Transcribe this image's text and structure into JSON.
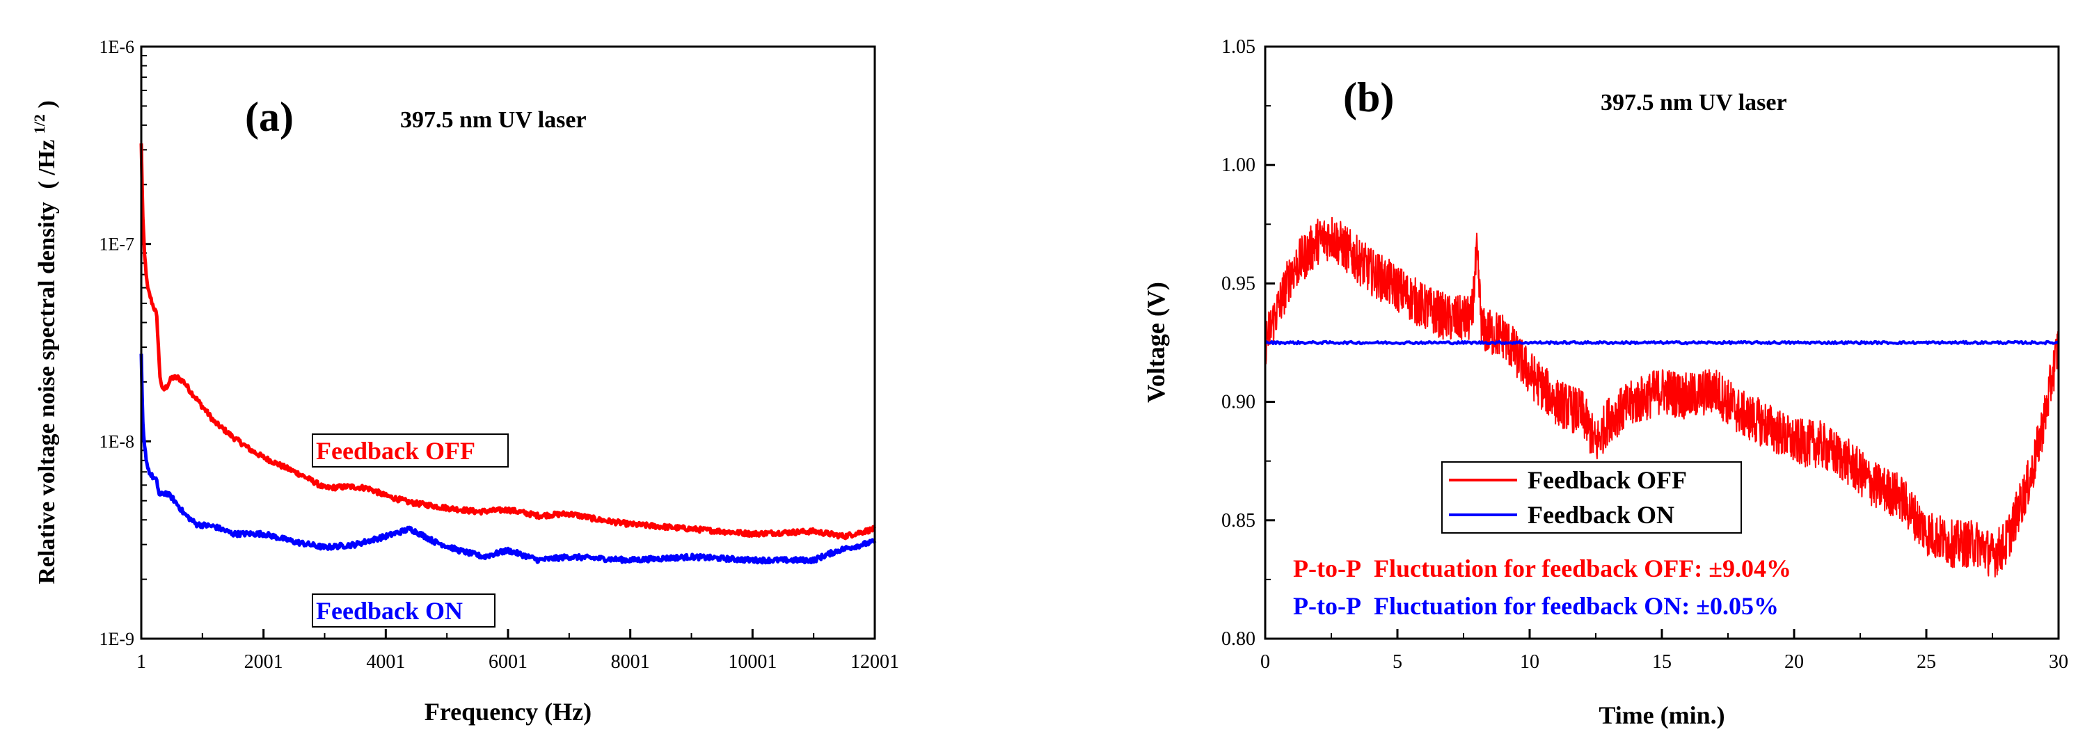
{
  "colors": {
    "off": "#ff0000",
    "on": "#0000ff",
    "axis": "#000000"
  },
  "chart_data": [
    {
      "type": "line",
      "panel_label": "(a)",
      "title": "397.5 nm UV laser",
      "xlabel": "Frequency  (Hz)",
      "ylabel": "Relative voltage noise spectral density",
      "ylabel_unit": "( /Hz",
      "ylabel_unit_sup": "1/2",
      "ylabel_unit_close": ")",
      "xlim": [
        1,
        12001
      ],
      "ylim": [
        1e-09,
        1e-06
      ],
      "yscale": "log",
      "xticks": [
        1,
        2001,
        4001,
        6001,
        8001,
        10001,
        12001
      ],
      "xtick_labels": [
        "1",
        "2001",
        "4001",
        "6001",
        "8001",
        "10001",
        "12001"
      ],
      "yticks": [
        1e-09,
        1e-08,
        1e-07,
        1e-06
      ],
      "ytick_labels": [
        "1E-9",
        "1E-8",
        "1E-7",
        "1E-6"
      ],
      "annotations": {
        "off": "Feedback OFF",
        "on": "Feedback ON"
      },
      "series": [
        {
          "name": "Feedback OFF",
          "color": "#ff0000",
          "x": [
            1,
            20,
            50,
            100,
            180,
            250,
            300,
            350,
            420,
            500,
            600,
            700,
            800,
            1000,
            1200,
            1500,
            1800,
            2000,
            2300,
            2600,
            3000,
            3400,
            3700,
            4000,
            4400,
            5000,
            5500,
            6000,
            6500,
            7000,
            7500,
            8000,
            9000,
            10000,
            11000,
            11500,
            12001
          ],
          "y": [
            3.2e-07,
            1.5e-07,
            9e-08,
            6e-08,
            5e-08,
            4.4e-08,
            2.2e-08,
            1.8e-08,
            1.9e-08,
            2.1e-08,
            2.1e-08,
            2e-08,
            1.8e-08,
            1.5e-08,
            1.25e-08,
            1.05e-08,
            9e-09,
            8.3e-09,
            7.5e-09,
            6.8e-09,
            5.8e-09,
            5.9e-09,
            5.8e-09,
            5.3e-09,
            4.9e-09,
            4.6e-09,
            4.4e-09,
            4.5e-09,
            4.2e-09,
            4.3e-09,
            4e-09,
            3.8e-09,
            3.6e-09,
            3.4e-09,
            3.5e-09,
            3.3e-09,
            3.6e-09
          ]
        },
        {
          "name": "Feedback ON",
          "color": "#0000ff",
          "x": [
            1,
            20,
            50,
            100,
            150,
            250,
            300,
            400,
            500,
            700,
            900,
            1200,
            1500,
            2000,
            2500,
            3000,
            3500,
            4000,
            4400,
            4800,
            5200,
            5600,
            6000,
            6500,
            7000,
            8000,
            9000,
            10000,
            11000,
            11400,
            12001
          ],
          "y": [
            2.7e-08,
            1.3e-08,
            9.5e-09,
            7.5e-09,
            6.8e-09,
            6.3e-09,
            5.3e-09,
            5.5e-09,
            5.2e-09,
            4.3e-09,
            3.8e-09,
            3.7e-09,
            3.4e-09,
            3.4e-09,
            3.1e-09,
            2.9e-09,
            3e-09,
            3.3e-09,
            3.6e-09,
            3.1e-09,
            2.8e-09,
            2.6e-09,
            2.8e-09,
            2.5e-09,
            2.6e-09,
            2.5e-09,
            2.6e-09,
            2.5e-09,
            2.5e-09,
            2.8e-09,
            3.1e-09
          ]
        }
      ]
    },
    {
      "type": "line",
      "panel_label": "(b)",
      "title": "397.5 nm UV laser",
      "xlabel": "Time  (min.)",
      "ylabel": "Voltage  (V)",
      "xlim": [
        0,
        30
      ],
      "ylim": [
        0.8,
        1.05
      ],
      "xticks": [
        0,
        5,
        10,
        15,
        20,
        25,
        30
      ],
      "xtick_labels": [
        "0",
        "5",
        "10",
        "15",
        "20",
        "25",
        "30"
      ],
      "yticks": [
        0.8,
        0.85,
        0.9,
        0.95,
        1.0,
        1.05
      ],
      "ytick_labels": [
        "0.80",
        "0.85",
        "0.90",
        "0.95",
        "1.00",
        "1.05"
      ],
      "legend": {
        "placement": "lower-center",
        "entries": [
          "Feedback OFF",
          "Feedback ON"
        ]
      },
      "annotations": {
        "off_prefix": "P-to-P",
        "off_text": "Fluctuation for feedback OFF: ±9.04%",
        "on_prefix": "P-to-P",
        "on_text": "Fluctuation for feedback ON:   ±0.05%"
      },
      "series": [
        {
          "name": "Feedback OFF",
          "color": "#ff0000",
          "x": [
            0,
            1,
            2,
            2.5,
            3,
            4,
            5,
            6,
            7,
            7.8,
            8,
            8.2,
            9,
            10,
            11,
            12,
            12.5,
            13,
            14,
            15,
            16,
            17,
            18,
            19,
            20,
            21,
            22,
            23,
            24,
            25,
            26,
            27,
            27.5,
            28,
            28.5,
            29,
            29.5,
            30
          ],
          "y": [
            0.925,
            0.955,
            0.968,
            0.97,
            0.965,
            0.955,
            0.948,
            0.94,
            0.935,
            0.935,
            0.962,
            0.93,
            0.928,
            0.912,
            0.9,
            0.895,
            0.882,
            0.893,
            0.9,
            0.905,
            0.902,
            0.905,
            0.895,
            0.89,
            0.883,
            0.882,
            0.875,
            0.865,
            0.86,
            0.845,
            0.84,
            0.84,
            0.835,
            0.84,
            0.855,
            0.87,
            0.895,
            0.925
          ],
          "noise_amplitude": 0.01
        },
        {
          "name": "Feedback ON",
          "color": "#0000ff",
          "x": [
            0,
            30
          ],
          "y": [
            0.925,
            0.925
          ],
          "noise_amplitude": 0.0005
        }
      ]
    }
  ]
}
